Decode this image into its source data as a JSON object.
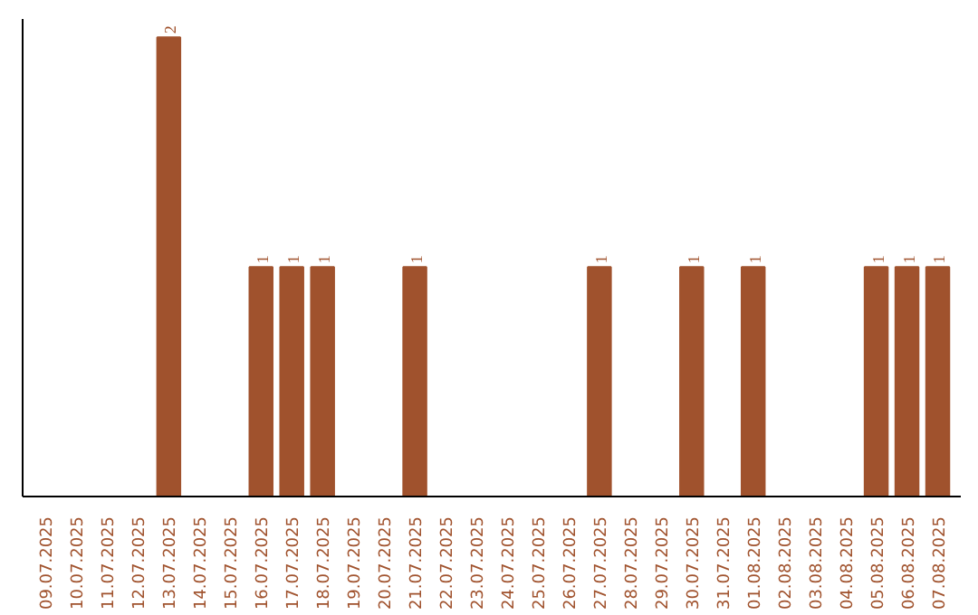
{
  "chart_data": {
    "type": "bar",
    "categories": [
      "09.07.2025",
      "10.07.2025",
      "11.07.2025",
      "12.07.2025",
      "13.07.2025",
      "14.07.2025",
      "15.07.2025",
      "16.07.2025",
      "17.07.2025",
      "18.07.2025",
      "19.07.2025",
      "20.07.2025",
      "21.07.2025",
      "22.07.2025",
      "23.07.2025",
      "24.07.2025",
      "25.07.2025",
      "26.07.2025",
      "27.07.2025",
      "28.07.2025",
      "29.07.2025",
      "30.07.2025",
      "31.07.2025",
      "01.08.2025",
      "02.08.2025",
      "03.08.2025",
      "04.08.2025",
      "05.08.2025",
      "06.08.2025",
      "07.08.2025"
    ],
    "values": [
      0,
      0,
      0,
      0,
      2,
      0,
      0,
      1,
      1,
      1,
      0,
      0,
      1,
      0,
      0,
      0,
      0,
      0,
      1,
      0,
      0,
      1,
      0,
      1,
      0,
      0,
      0,
      1,
      1,
      1
    ],
    "value_labels": [
      null,
      null,
      null,
      null,
      "2",
      null,
      null,
      "1",
      "1",
      "1",
      null,
      null,
      "1",
      null,
      null,
      null,
      null,
      null,
      "1",
      null,
      null,
      "1",
      null,
      "1",
      null,
      null,
      null,
      "1",
      "1",
      "1"
    ],
    "color": "#a0522d"
  }
}
